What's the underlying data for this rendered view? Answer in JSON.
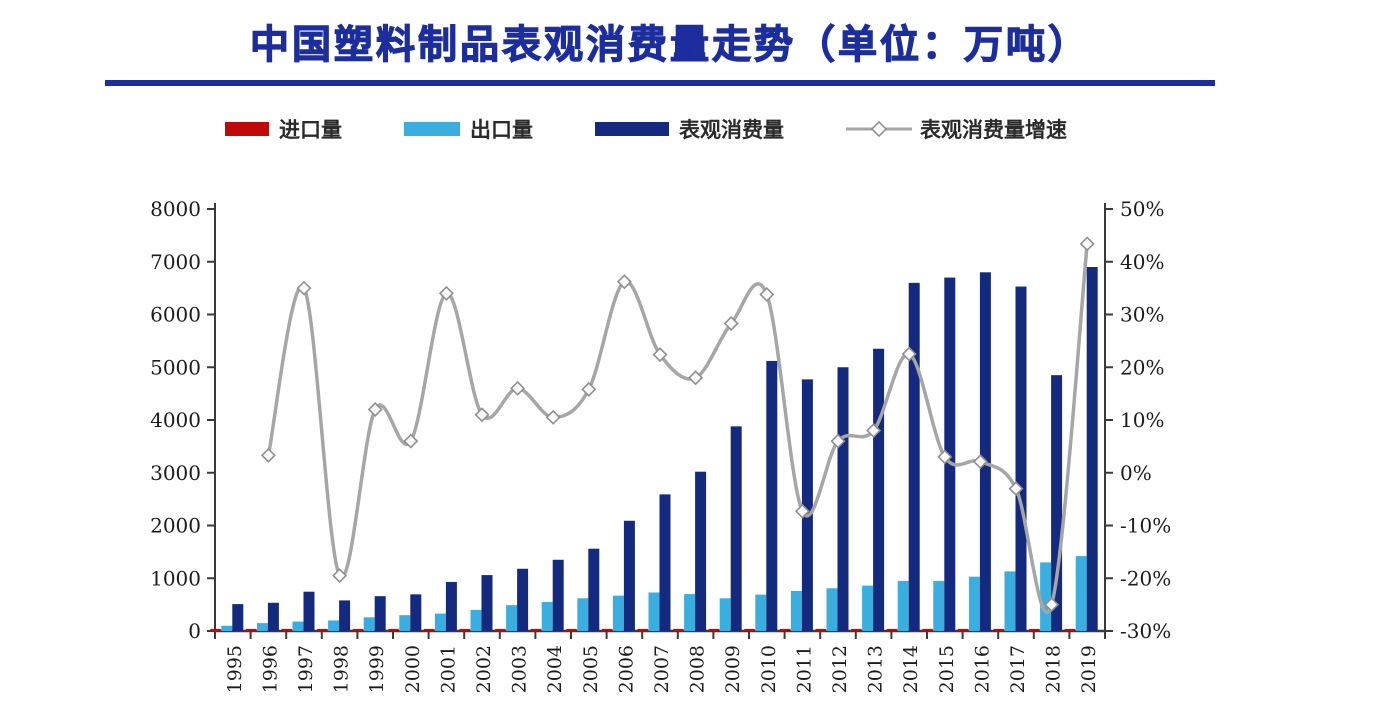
{
  "title": {
    "text": "中国塑料制品表观消费量走势（单位：万吨）"
  },
  "legend": [
    {
      "key": "imports",
      "label": "进口量",
      "type": "bar",
      "color": "#c00a0a"
    },
    {
      "key": "exports",
      "label": "出口量",
      "type": "bar",
      "color": "#3aaede"
    },
    {
      "key": "consumption",
      "label": "表观消费量",
      "type": "bar",
      "color": "#132a7e"
    },
    {
      "key": "growth",
      "label": "表观消费量增速",
      "type": "line",
      "color": "#a6a6a6"
    }
  ],
  "chart_data": {
    "type": "bar+line combo",
    "title": "中国塑料制品表观消费量走势（单位：万吨）",
    "categories": [
      "1995",
      "1996",
      "1997",
      "1998",
      "1999",
      "2000",
      "2001",
      "2002",
      "2003",
      "2004",
      "2005",
      "2006",
      "2007",
      "2008",
      "2009",
      "2010",
      "2011",
      "2012",
      "2013",
      "2014",
      "2015",
      "2016",
      "2017",
      "2018",
      "2019"
    ],
    "series": [
      {
        "name": "进口量",
        "type": "bar",
        "axis": "left",
        "color": "#c00a0a",
        "values": [
          40,
          40,
          40,
          40,
          40,
          40,
          40,
          40,
          40,
          40,
          40,
          40,
          40,
          40,
          40,
          40,
          40,
          40,
          40,
          40,
          40,
          40,
          40,
          40,
          40
        ]
      },
      {
        "name": "出口量",
        "type": "bar",
        "axis": "left",
        "color": "#3aaede",
        "values": [
          100,
          150,
          180,
          200,
          260,
          300,
          330,
          400,
          490,
          550,
          620,
          670,
          730,
          700,
          620,
          690,
          760,
          810,
          860,
          950,
          950,
          1030,
          1130,
          1300,
          1420
        ]
      },
      {
        "name": "表观消费量",
        "type": "bar",
        "axis": "left",
        "color": "#132a7e",
        "values": [
          510,
          535,
          745,
          580,
          660,
          695,
          930,
          1060,
          1180,
          1350,
          1560,
          2090,
          2590,
          3020,
          3880,
          5120,
          4770,
          5000,
          5350,
          6600,
          6700,
          6800,
          6530,
          4850,
          6900
        ]
      },
      {
        "name": "表观消费量增速",
        "type": "line",
        "axis": "right",
        "color": "#a6a6a6",
        "values": [
          null,
          3.3,
          35,
          -19.5,
          12,
          6,
          34,
          11,
          16,
          10.5,
          15.8,
          36.2,
          22.4,
          18,
          28.3,
          33.8,
          -7.3,
          6,
          8,
          22.5,
          3,
          2.1,
          -3,
          -25,
          43.4
        ]
      }
    ],
    "left_axis": {
      "min": 0,
      "max": 8000,
      "step": 1000,
      "tick_labels": [
        "8000",
        "7000",
        "6000",
        "5000",
        "4000",
        "3000",
        "2000",
        "1000",
        "0"
      ]
    },
    "right_axis": {
      "min": -30,
      "max": 50,
      "step": 10,
      "tick_labels": [
        "50%",
        "40%",
        "30%",
        "20%",
        "10%",
        "0%",
        "-10%",
        "-20%",
        "-30%"
      ]
    },
    "grid": false,
    "legend_position": "top"
  }
}
